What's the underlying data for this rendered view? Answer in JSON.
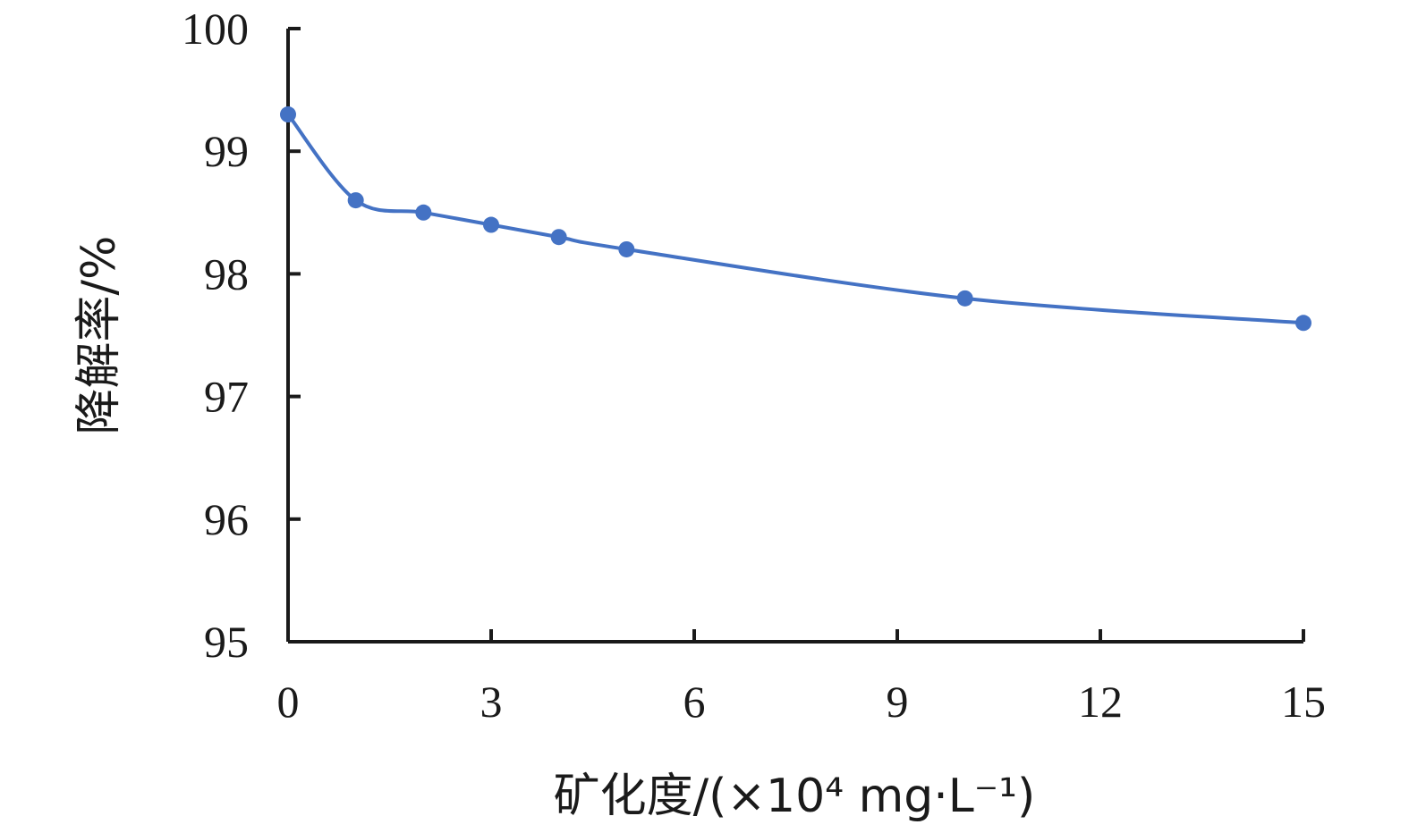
{
  "chart_data": {
    "type": "line",
    "title": "",
    "xlabel": "矿化度/(×10⁴ mg·L⁻¹)",
    "ylabel": "降解率/%",
    "xlim": [
      0,
      15
    ],
    "ylim": [
      95,
      100
    ],
    "x_ticks": [
      0,
      3,
      6,
      9,
      12,
      15
    ],
    "y_ticks": [
      95,
      96,
      97,
      98,
      99,
      100
    ],
    "grid": false,
    "legend": "none",
    "series": [
      {
        "color": "#4472C4",
        "smooth": true,
        "markers": true,
        "points": [
          {
            "x": 0,
            "y": 99.3
          },
          {
            "x": 1,
            "y": 98.6
          },
          {
            "x": 2,
            "y": 98.5
          },
          {
            "x": 3,
            "y": 98.4
          },
          {
            "x": 4,
            "y": 98.3
          },
          {
            "x": 5,
            "y": 98.2
          },
          {
            "x": 10,
            "y": 97.8
          },
          {
            "x": 15,
            "y": 97.6
          }
        ]
      }
    ]
  }
}
